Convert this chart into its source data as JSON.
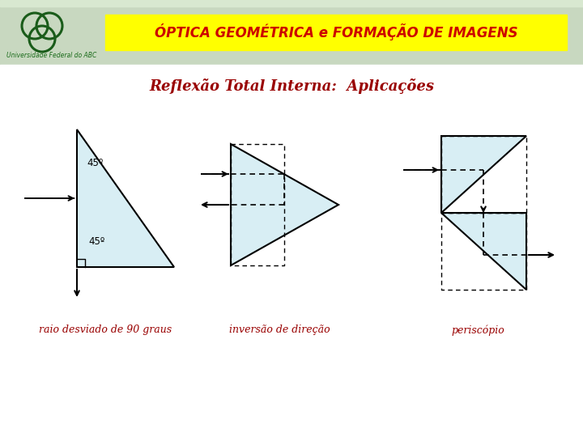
{
  "bg_color": "#f0f0e8",
  "header_color": "#c8d8c0",
  "content_bg": "#f8f8f4",
  "title_bar_color": "#ffff00",
  "title_text": "ÓPTICA GEOMÉTRICA e FORMAÇÃO DE IMAGENS",
  "title_text_color": "#cc0000",
  "subtitle_text": "Reflexão Total Interna:  Aplicações",
  "subtitle_color": "#990000",
  "label1": "raio desviado de 90 graus",
  "label2": "inversão de direção",
  "label3": "periscópio",
  "label_color": "#990000",
  "prism_fill": "#d8eef4",
  "prism_edge": "#000000",
  "logo_color": "#1a5c1a",
  "univ_text": "Universidade Federal do ABC",
  "univ_color": "#1a6b1a"
}
